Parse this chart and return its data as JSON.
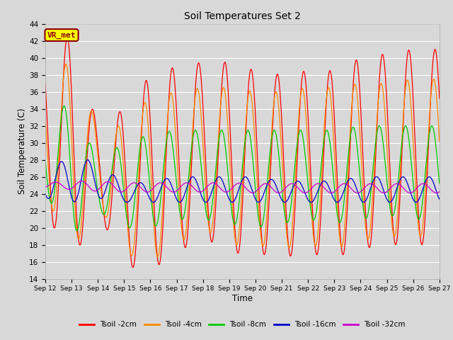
{
  "title": "Soil Temperatures Set 2",
  "xlabel": "Time",
  "ylabel": "Soil Temperature (C)",
  "ylim": [
    14,
    44
  ],
  "yticks": [
    14,
    16,
    18,
    20,
    22,
    24,
    26,
    28,
    30,
    32,
    34,
    36,
    38,
    40,
    42,
    44
  ],
  "x_tick_labels": [
    "Sep 12",
    "Sep 13",
    "Sep 14",
    "Sep 15",
    "Sep 16",
    "Sep 17",
    "Sep 18",
    "Sep 19",
    "Sep 20",
    "Sep 21",
    "Sep 22",
    "Sep 23",
    "Sep 24",
    "Sep 25",
    "Sep 26",
    "Sep 27"
  ],
  "series_colors": [
    "#ff0000",
    "#ff8800",
    "#00cc00",
    "#0000cc",
    "#cc00cc"
  ],
  "series_labels": [
    "Tsoil -2cm",
    "Tsoil -4cm",
    "Tsoil -8cm",
    "Tsoil -16cm",
    "Tsoil -32cm"
  ],
  "watermark_text": "VR_met",
  "watermark_color": "#8B0000",
  "watermark_bg": "#FFFF00",
  "background_color": "#d8d8d8",
  "plot_bg_color": "#d8d8d8",
  "grid_color": "#ffffff",
  "tsoil_2cm_min": [
    22.0,
    16.0,
    22.0,
    15.5,
    15.0,
    17.0,
    19.0,
    17.0,
    17.0,
    16.5,
    17.0,
    16.5,
    17.5,
    18.0,
    18.0,
    22.0
  ],
  "tsoil_2cm_max": [
    42.0,
    42.5,
    32.0,
    34.0,
    38.0,
    39.0,
    39.5,
    39.5,
    38.5,
    38.0,
    38.5,
    38.5,
    40.0,
    40.5,
    41.0,
    40.5
  ],
  "tsoil_4cm_min": [
    24.0,
    17.0,
    23.0,
    17.0,
    16.0,
    18.0,
    20.0,
    18.0,
    18.0,
    17.5,
    18.0,
    17.5,
    18.5,
    19.0,
    19.0,
    22.5
  ],
  "tsoil_4cm_max": [
    38.5,
    39.5,
    32.0,
    32.0,
    35.5,
    36.0,
    36.5,
    36.5,
    36.0,
    36.0,
    36.5,
    36.5,
    37.0,
    37.0,
    37.5,
    37.0
  ],
  "tsoil_8cm_min": [
    24.0,
    19.0,
    22.0,
    20.0,
    20.0,
    21.0,
    21.0,
    20.5,
    20.0,
    20.5,
    21.0,
    20.5,
    21.0,
    21.5,
    21.0,
    22.5
  ],
  "tsoil_8cm_max": [
    34.0,
    34.5,
    28.0,
    30.0,
    31.0,
    31.5,
    31.5,
    31.5,
    31.5,
    31.5,
    31.5,
    31.5,
    32.0,
    32.0,
    32.0,
    32.0
  ],
  "tsoil_16cm_min": [
    23.5,
    23.0,
    23.5,
    23.0,
    23.0,
    23.0,
    23.0,
    23.0,
    23.0,
    23.0,
    23.0,
    23.0,
    23.0,
    23.0,
    23.0,
    23.0
  ],
  "tsoil_16cm_max": [
    27.5,
    28.0,
    28.0,
    25.0,
    25.5,
    26.0,
    26.0,
    26.0,
    26.0,
    25.5,
    25.5,
    25.5,
    26.0,
    26.0,
    26.0,
    26.0
  ],
  "tsoil_32cm_min": [
    24.7,
    24.5,
    24.3,
    24.2,
    24.2,
    24.2,
    24.2,
    24.2,
    24.1,
    24.1,
    24.1,
    24.1,
    24.1,
    24.1,
    24.1,
    24.1
  ],
  "tsoil_32cm_max": [
    25.3,
    25.5,
    25.5,
    25.3,
    25.3,
    25.3,
    25.3,
    25.3,
    25.2,
    25.2,
    25.2,
    25.2,
    25.2,
    25.2,
    25.2,
    25.2
  ],
  "phase_shifts": [
    0.0,
    0.05,
    0.12,
    0.22,
    0.45
  ]
}
